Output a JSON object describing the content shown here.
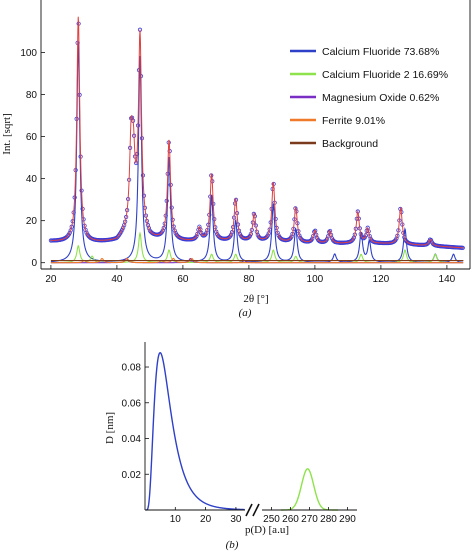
{
  "chart_data": [
    {
      "type": "line",
      "title": "",
      "xlabel": "2θ [°]",
      "ylabel": "Int. [sqrt]",
      "xlim": [
        17,
        147
      ],
      "ylim": [
        -3,
        125
      ],
      "x_ticks": [
        20,
        40,
        60,
        80,
        100,
        120,
        140
      ],
      "y_ticks": [
        0,
        20,
        40,
        60,
        80,
        100
      ],
      "grid": false,
      "legend_position": "right",
      "caption": "(a)",
      "colors": {
        "observed": "#3b3bd6",
        "calcium_fluoride": "#2f40c8",
        "calcium_fluoride_2": "#8ee24c",
        "magnesium_oxide": "#7a2fc4",
        "ferrite": "#f07a2a",
        "background": "#7a3b1c",
        "fit": "#e04040"
      },
      "series": [
        {
          "name": "Calcium Fluoride 73.68%",
          "color": "#2f40c8",
          "peaks": [
            [
              28.3,
              105
            ],
            [
              47.0,
              98
            ],
            [
              55.8,
              50
            ],
            [
              68.7,
              32
            ],
            [
              76.0,
              20
            ],
            [
              87.4,
              28
            ],
            [
              94.2,
              16
            ],
            [
              106,
              4
            ],
            [
              114,
              14
            ],
            [
              116.5,
              10
            ],
            [
              127.3,
              16
            ],
            [
              136.5,
              4
            ],
            [
              142,
              4
            ]
          ]
        },
        {
          "name": "Calcium Fluoride 2 16.69%",
          "color": "#8ee24c",
          "peaks": [
            [
              28.3,
              8
            ],
            [
              32.5,
              3
            ],
            [
              47.0,
              14
            ],
            [
              55.8,
              6
            ],
            [
              68.7,
              4
            ],
            [
              76.0,
              4
            ],
            [
              87.4,
              6
            ],
            [
              94.2,
              3
            ],
            [
              114,
              4
            ],
            [
              127.3,
              6
            ],
            [
              136.5,
              4
            ]
          ]
        },
        {
          "name": "Magnesium Oxide 0.62%",
          "color": "#7a2fc4",
          "peaks": [
            [
              42.9,
              2
            ],
            [
              62.3,
              2
            ],
            [
              78.6,
              1
            ]
          ]
        },
        {
          "name": "Ferrite 9.01%",
          "color": "#f07a2a",
          "peaks": [
            [
              30.1,
              1
            ],
            [
              35.5,
              2
            ],
            [
              43.1,
              2
            ],
            [
              53.5,
              1
            ],
            [
              57.1,
              2
            ],
            [
              62.7,
              2
            ]
          ]
        },
        {
          "name": "Background",
          "color": "#7a3b1c",
          "x": [
            20,
            40,
            60,
            80,
            100,
            120,
            145
          ],
          "y": [
            1,
            1,
            1,
            1,
            1,
            1,
            1
          ]
        }
      ],
      "observed": {
        "baseline": [
          [
            20,
            10
          ],
          [
            30,
            9
          ],
          [
            40,
            10
          ],
          [
            46,
            18
          ],
          [
            50,
            11
          ],
          [
            60,
            10
          ],
          [
            80,
            10
          ],
          [
            100,
            9
          ],
          [
            120,
            9
          ],
          [
            135,
            8
          ],
          [
            145,
            7
          ]
        ],
        "peak_maxima": [
          [
            28.3,
            117
          ],
          [
            44.3,
            54
          ],
          [
            45.0,
            45
          ],
          [
            47.0,
            107
          ],
          [
            55.8,
            58
          ],
          [
            65.0,
            16
          ],
          [
            68.7,
            42
          ],
          [
            76.0,
            30
          ],
          [
            81.6,
            23
          ],
          [
            87.4,
            38
          ],
          [
            94.2,
            26
          ],
          [
            100.0,
            15
          ],
          [
            104.5,
            15
          ],
          [
            113.0,
            24
          ],
          [
            116.0,
            16
          ],
          [
            126.0,
            26
          ],
          [
            135.0,
            11
          ]
        ]
      }
    },
    {
      "type": "line",
      "title": "",
      "xlabel": "p(D) [a.u]",
      "ylabel": "D [nm]",
      "ylim": [
        0,
        0.094
      ],
      "left_segment_xlim": [
        0,
        33
      ],
      "right_segment_xlim": [
        245,
        295
      ],
      "x_ticks_left": [
        10,
        20,
        30
      ],
      "x_ticks_right": [
        250,
        260,
        270,
        280,
        290
      ],
      "y_ticks": [
        0.02,
        0.04,
        0.06,
        0.08
      ],
      "axis_break": true,
      "grid": false,
      "caption": "(b)",
      "series": [
        {
          "color": "#2f40c8",
          "lognormal_peak": {
            "x": 5,
            "y": 0.088
          }
        },
        {
          "color": "#8ee24c",
          "gaussian_peak": {
            "x": 269,
            "y": 0.023,
            "sigma": 3.2
          }
        }
      ]
    }
  ]
}
